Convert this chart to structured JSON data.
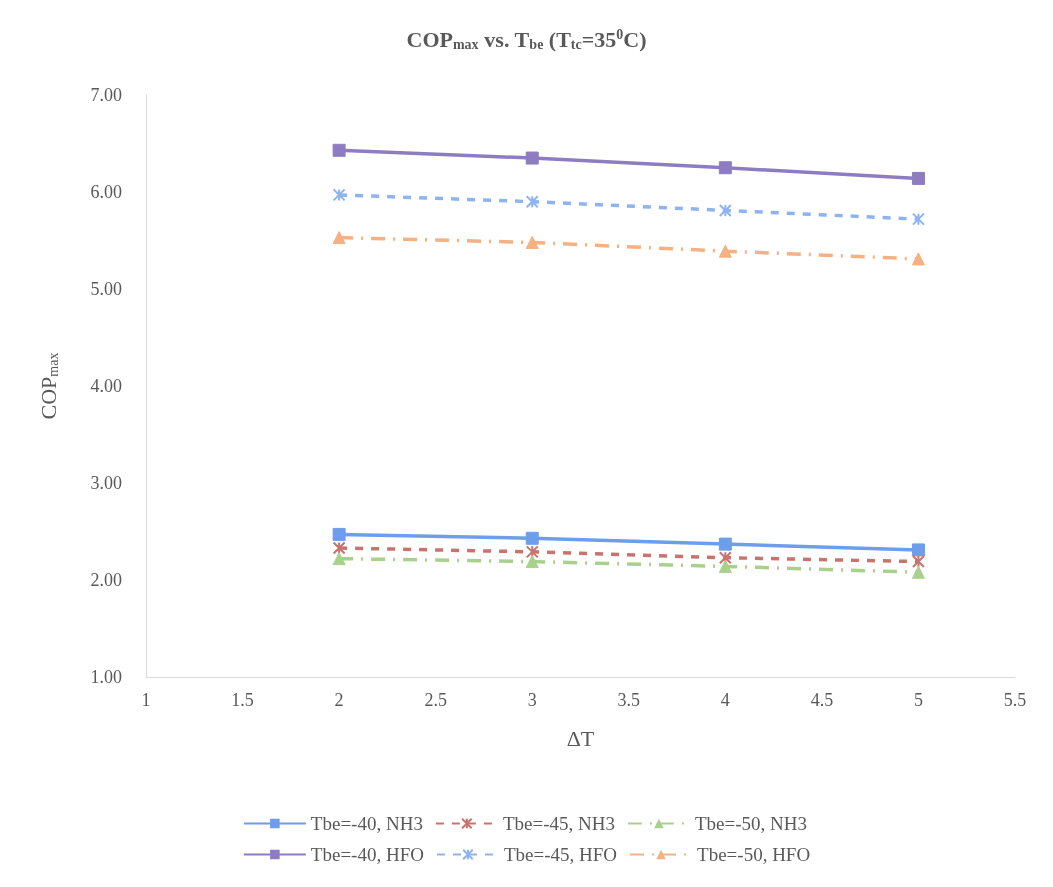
{
  "chart_data": {
    "type": "line",
    "title": "COP$_{max}$ vs. T$_{be}$ (T$_{tc}$=35$^{0}$C)",
    "xlabel": "ΔT",
    "ylabel": "COP$_{max}$",
    "x": [
      2,
      3,
      4,
      5
    ],
    "series": [
      {
        "name": "Tbe=-40, NH3",
        "color": "#6d9eeb",
        "marker": "square",
        "line_style": "solid",
        "values": [
          2.47,
          2.43,
          2.37,
          2.31
        ]
      },
      {
        "name": "Tbe=-45, NH3",
        "color": "#c9736e",
        "marker": "cross",
        "line_style": "dashed",
        "values": [
          2.33,
          2.29,
          2.23,
          2.19
        ]
      },
      {
        "name": "Tbe=-50, NH3",
        "color": "#a9d18e",
        "marker": "triangle",
        "line_style": "dotted",
        "values": [
          2.22,
          2.19,
          2.14,
          2.08
        ]
      },
      {
        "name": "Tbe=-40, HFO",
        "color": "#8e7cc3",
        "marker": "square",
        "line_style": "solid",
        "values": [
          6.43,
          6.35,
          6.25,
          6.14
        ]
      },
      {
        "name": "Tbe=-45, HFO",
        "color": "#8db4f0",
        "marker": "cross",
        "line_style": "dashed",
        "values": [
          5.97,
          5.9,
          5.81,
          5.72
        ]
      },
      {
        "name": "Tbe=-50, HFO",
        "color": "#f4b183",
        "marker": "triangle",
        "line_style": "dotted",
        "values": [
          5.53,
          5.48,
          5.39,
          5.31
        ]
      }
    ],
    "xlim": [
      1,
      5.5
    ],
    "xticks": [
      1,
      1.5,
      2,
      2.5,
      3,
      3.5,
      4,
      4.5,
      5,
      5.5
    ],
    "ylim": [
      1,
      7
    ],
    "yticks": [
      {
        "value": 1,
        "label": "1.00"
      },
      {
        "value": 2,
        "label": "2.00"
      },
      {
        "value": 3,
        "label": "3.00"
      },
      {
        "value": 4,
        "label": "4.00"
      },
      {
        "value": 5,
        "label": "5.00"
      },
      {
        "value": 6,
        "label": "6.00"
      },
      {
        "value": 7,
        "label": "7.00"
      }
    ],
    "grid": false,
    "legend": "bottom"
  }
}
